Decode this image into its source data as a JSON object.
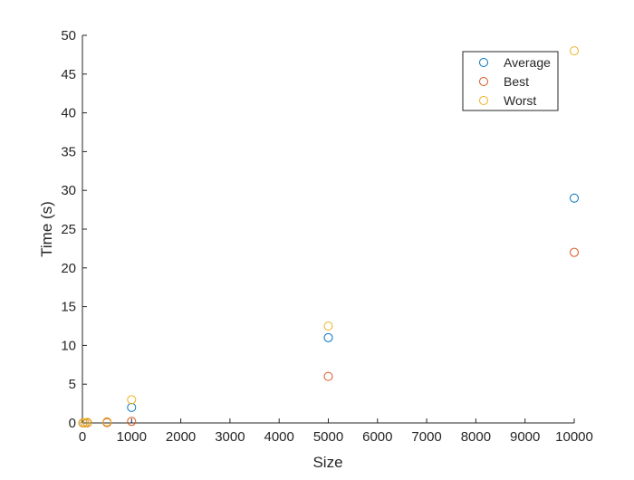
{
  "chart_data": {
    "type": "scatter",
    "title": "",
    "xlabel": "Size",
    "ylabel": "Time (s)",
    "xlim": [
      0,
      10000
    ],
    "ylim": [
      0,
      50
    ],
    "xticks": [
      0,
      1000,
      2000,
      3000,
      4000,
      5000,
      6000,
      7000,
      8000,
      9000,
      10000
    ],
    "yticks": [
      0,
      5,
      10,
      15,
      20,
      25,
      30,
      35,
      40,
      45,
      50
    ],
    "grid": false,
    "box": false,
    "legend_position": "top-right",
    "marker": "open-circle",
    "series": [
      {
        "name": "Average",
        "color": "#0072BD",
        "x": [
          10,
          50,
          100,
          500,
          1000,
          5000,
          10000
        ],
        "y": [
          0,
          0,
          0.05,
          0.1,
          2,
          11,
          29
        ]
      },
      {
        "name": "Best",
        "color": "#D95319",
        "x": [
          10,
          50,
          100,
          500,
          1000,
          5000,
          10000
        ],
        "y": [
          0,
          0,
          0.02,
          0.05,
          0.2,
          6,
          22
        ]
      },
      {
        "name": "Worst",
        "color": "#EDB120",
        "x": [
          10,
          50,
          100,
          500,
          1000,
          5000,
          10000
        ],
        "y": [
          0,
          0,
          0.08,
          0.15,
          3,
          12.5,
          48
        ]
      }
    ]
  }
}
